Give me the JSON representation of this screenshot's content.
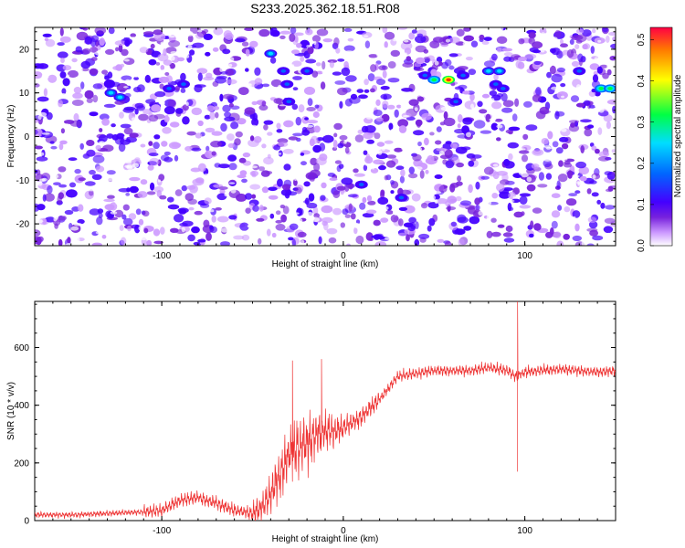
{
  "figure_title": "S233.2025.362.18.51.R08",
  "colors": {
    "snr_line": "#ee3333",
    "colormap": [
      "#ffffff",
      "#cc99ff",
      "#7722dd",
      "#4400ff",
      "#0066ff",
      "#00ddff",
      "#00ff44",
      "#ffff00",
      "#ff3300"
    ]
  },
  "chart_data": [
    {
      "type": "heatmap",
      "title": "",
      "xlabel": "Height of straight line (km)",
      "ylabel": "Frequency (Hz)",
      "xlim": [
        -170,
        150
      ],
      "ylim": [
        -25,
        25
      ],
      "xticks": [
        -100,
        0,
        100
      ],
      "yticks": [
        -20,
        -10,
        0,
        10,
        20
      ],
      "colorbar": {
        "label": "Normalized spectral amplitude",
        "range": [
          0,
          0.53
        ],
        "ticks": [
          "0.0",
          "0.1",
          "0.2",
          "0.3",
          "0.4",
          "0.5"
        ]
      },
      "strong_features": [
        {
          "x": -128,
          "y": 10,
          "amp": 0.2
        },
        {
          "x": -123,
          "y": 9,
          "amp": 0.17
        },
        {
          "x": -96,
          "y": 11,
          "amp": 0.14
        },
        {
          "x": -88,
          "y": 12,
          "amp": 0.14
        },
        {
          "x": -40,
          "y": 19,
          "amp": 0.16
        },
        {
          "x": -33,
          "y": 15,
          "amp": 0.13
        },
        {
          "x": -31,
          "y": 12,
          "amp": 0.12
        },
        {
          "x": -30,
          "y": 8,
          "amp": 0.12
        },
        {
          "x": -20,
          "y": 15,
          "amp": 0.13
        },
        {
          "x": 10,
          "y": -11,
          "amp": 0.13
        },
        {
          "x": 32,
          "y": -14,
          "amp": 0.12
        },
        {
          "x": 45,
          "y": 14,
          "amp": 0.12
        },
        {
          "x": 50,
          "y": 13,
          "amp": 0.3
        },
        {
          "x": 58,
          "y": 13,
          "amp": 0.4
        },
        {
          "x": 62,
          "y": 8,
          "amp": 0.15
        },
        {
          "x": 66,
          "y": 14,
          "amp": 0.14
        },
        {
          "x": 80,
          "y": 15,
          "amp": 0.16
        },
        {
          "x": 84,
          "y": 12,
          "amp": 0.13
        },
        {
          "x": 86,
          "y": 15,
          "amp": 0.17
        },
        {
          "x": 88,
          "y": 11,
          "amp": 0.13
        },
        {
          "x": 130,
          "y": 15,
          "amp": 0.14
        },
        {
          "x": 142,
          "y": 11,
          "amp": 0.28
        },
        {
          "x": 147,
          "y": 11,
          "amp": 0.32
        }
      ]
    },
    {
      "type": "line",
      "title": "",
      "xlabel": "Height of straight line (km)",
      "ylabel": "SNR (10 * v/v)",
      "xlim": [
        -170,
        150
      ],
      "ylim": [
        0,
        760
      ],
      "xticks": [
        -100,
        0,
        100
      ],
      "yticks": [
        0,
        200,
        400,
        600
      ],
      "series": [
        {
          "x": [
            -170,
            -150,
            -130,
            -110,
            -100,
            -90,
            -80,
            -70,
            -60,
            -50,
            -45,
            -40,
            -35,
            -30,
            -25,
            -20,
            -15,
            -10,
            -5,
            0,
            5,
            10,
            15,
            20,
            25,
            30,
            40,
            50,
            60,
            70,
            80,
            90,
            95,
            100,
            110,
            120,
            130,
            140,
            150
          ],
          "values": [
            20,
            20,
            25,
            30,
            35,
            70,
            80,
            60,
            35,
            25,
            45,
            90,
            160,
            230,
            250,
            270,
            300,
            310,
            310,
            320,
            340,
            360,
            390,
            420,
            460,
            500,
            510,
            520,
            520,
            520,
            530,
            520,
            500,
            515,
            520,
            525,
            520,
            515,
            520
          ]
        }
      ],
      "annotations": [
        {
          "x": 96,
          "values": [
            170,
            760
          ]
        },
        {
          "x": -28,
          "values": [
            555
          ]
        },
        {
          "x": -12,
          "values": [
            560
          ]
        }
      ]
    }
  ]
}
